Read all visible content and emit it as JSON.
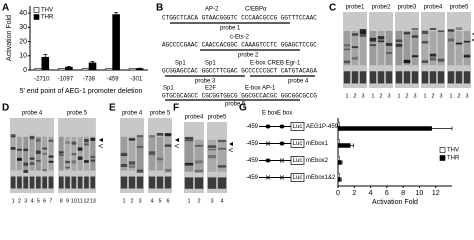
{
  "panel_labels": [
    "A",
    "B",
    "C",
    "D",
    "E",
    "F",
    "G"
  ],
  "chart_data": [
    {
      "type": "bar",
      "ylabel": "Activation Fold",
      "xlabel": "5' end point of AEG-1 promoter deletion",
      "categories": [
        "-2710",
        "-1097",
        "-738",
        "-459",
        "-301"
      ],
      "series": [
        {
          "name": "THV",
          "color": "#ffffff",
          "values": [
            1,
            1,
            1,
            1,
            1
          ]
        },
        {
          "name": "THR",
          "color": "#000000",
          "values": [
            9,
            2,
            5,
            39,
            1
          ],
          "errors": [
            2,
            0.5,
            1,
            1.5,
            0.3
          ]
        }
      ],
      "ylim": [
        0,
        45
      ],
      "yticks": [
        0,
        10,
        20,
        30,
        40
      ],
      "legend": "upper left"
    },
    {
      "type": "barh",
      "xlabel": "Activation Fold",
      "categories": [
        "AEG1P-459",
        "mEbox1",
        "mEbox2",
        "mEbox1&2"
      ],
      "series": [
        {
          "name": "THV",
          "color": "#ffffff",
          "values": [
            0.2,
            0.2,
            0.2,
            0.2
          ]
        },
        {
          "name": "THR",
          "color": "#000000",
          "values": [
            11.5,
            1.5,
            0.4,
            0.3
          ],
          "errors": [
            2.5,
            0.4,
            0.1,
            0.1
          ]
        }
      ],
      "xlim": [
        0,
        14
      ],
      "xticks": [
        0,
        2,
        4,
        6,
        8,
        10,
        12
      ],
      "legend": "right"
    }
  ],
  "sequence": {
    "factors": [
      "AP-2",
      "C/EBPα",
      "c-Ets-2",
      "Sp1",
      "Sp1",
      "E-box CREB Egr-1",
      "Sp1",
      "E2F",
      "E-box AP-1"
    ],
    "lines": [
      "CTGGCTCACA GTAACGGGTC CCCAACGCCG GGTTTCCAAC",
      "AGCCCCGAAC CAACCACGGC CAAAGTCCTC GGAGCTCCGC",
      "GCGGAGCCAC GGCCTTCGAC GCCCCCCGCT CATGTACAGA",
      "GTGCGCAGCC CGCGGTGGCG GGCGCCACGC GGCGGCGCCG"
    ],
    "probes": [
      "probe 1",
      "probe 2",
      "probe 3",
      "probe 4",
      "probe 5"
    ]
  },
  "constructs": {
    "ebox": [
      "E box",
      "E box"
    ],
    "start": [
      "-459",
      "-459",
      "-459",
      "-459"
    ],
    "reporter": [
      "Luc",
      "Luc",
      "Luc",
      "Luc"
    ]
  },
  "gels": {
    "C": [
      {
        "probe": "probe1",
        "lanes": [
          "1",
          "2",
          "3"
        ]
      },
      {
        "probe": "probe2",
        "lanes": [
          "1",
          "2",
          "3"
        ]
      },
      {
        "probe": "probe3",
        "lanes": [
          "1",
          "2",
          "3"
        ]
      },
      {
        "probe": "probe4",
        "lanes": [
          "1",
          "2",
          "3"
        ]
      },
      {
        "probe": "probe5",
        "lanes": [
          "1",
          "2",
          "3"
        ]
      }
    ],
    "D": [
      {
        "probe": "probe 4",
        "lanes": [
          "1",
          "2",
          "3",
          "4",
          "5",
          "6",
          "7"
        ]
      },
      {
        "probe": "probe 5",
        "lanes": [
          "8",
          "9",
          "10",
          "11",
          "12",
          "13"
        ]
      }
    ],
    "E": [
      {
        "probe": "probe 4",
        "lanes": [
          "1",
          "2",
          "3"
        ]
      },
      {
        "probe": "probe 5",
        "lanes": [
          "4",
          "5",
          "6"
        ]
      }
    ],
    "F": [
      {
        "probe": "probe4",
        "lanes": [
          "1",
          "2"
        ]
      },
      {
        "probe": "probe5",
        "lanes": [
          "3",
          "4"
        ]
      }
    ]
  }
}
